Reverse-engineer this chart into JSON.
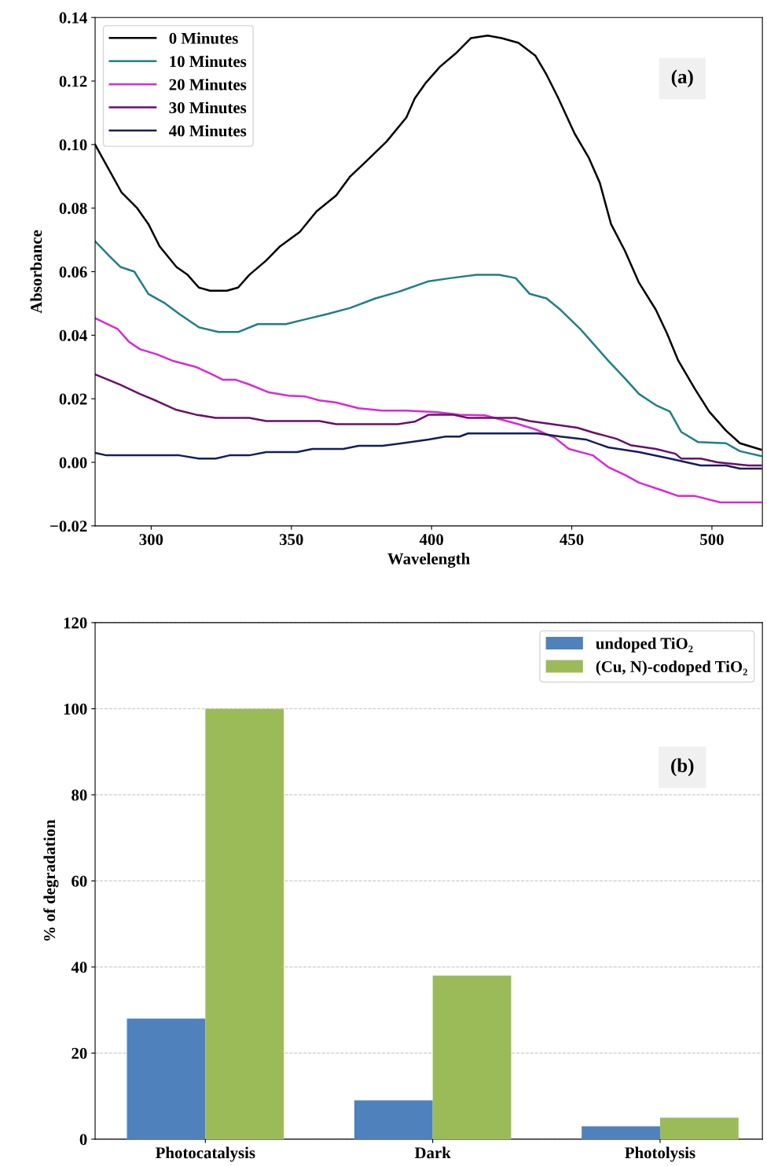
{
  "chart_data": [
    {
      "type": "line",
      "xlabel": "Wavelength",
      "ylabel": "Absorbance",
      "xlim": [
        280,
        518
      ],
      "ylim": [
        -0.02,
        0.14
      ],
      "xticks": [
        300,
        350,
        400,
        450,
        500
      ],
      "yticks": [
        {
          "value": -0.02,
          "label": "−0.02"
        },
        {
          "value": 0.0,
          "label": "0.00"
        },
        {
          "value": 0.02,
          "label": "0.02"
        },
        {
          "value": 0.04,
          "label": "0.04"
        },
        {
          "value": 0.06,
          "label": "0.06"
        },
        {
          "value": 0.08,
          "label": "0.08"
        },
        {
          "value": 0.1,
          "label": "0.10"
        },
        {
          "value": 0.12,
          "label": "0.12"
        },
        {
          "value": 0.14,
          "label": "0.14"
        }
      ],
      "legend": "top left",
      "grid": false,
      "annotations": [
        "(a)"
      ],
      "series": [
        {
          "name": "0 Minutes",
          "color": "#000000",
          "x": [
            280,
            289.4,
            295,
            299,
            303,
            309,
            313,
            317,
            321,
            327,
            331,
            335,
            341,
            346,
            353,
            359,
            366,
            371,
            377,
            384,
            391,
            394,
            398,
            403,
            409,
            414,
            420,
            425,
            431,
            437,
            441,
            445,
            451,
            456,
            460,
            464,
            469,
            474,
            480,
            484,
            488,
            494,
            499,
            505,
            510,
            517.5
          ],
          "values": [
            0.1,
            0.085,
            0.08,
            0.075,
            0.068,
            0.0615,
            0.059,
            0.055,
            0.054,
            0.054,
            0.055,
            0.059,
            0.0635,
            0.068,
            0.0725,
            0.079,
            0.084,
            0.09,
            0.095,
            0.101,
            0.1085,
            0.1145,
            0.1195,
            0.1245,
            0.129,
            0.1335,
            0.1343,
            0.1335,
            0.132,
            0.128,
            0.122,
            0.115,
            0.1035,
            0.096,
            0.088,
            0.075,
            0.0665,
            0.0565,
            0.048,
            0.0405,
            0.032,
            0.023,
            0.016,
            0.01,
            0.006,
            0.004
          ]
        },
        {
          "name": "10 Minutes",
          "color": "#1f7f85",
          "x": [
            280,
            285,
            289,
            294,
            299,
            305,
            310,
            317,
            324,
            331,
            338,
            348,
            355,
            363,
            371,
            380,
            388,
            399,
            407,
            416,
            424,
            430,
            435,
            441,
            446,
            453,
            457,
            463,
            469,
            474,
            480,
            485,
            489,
            495,
            505,
            510,
            517.5
          ],
          "values": [
            0.0696,
            0.065,
            0.0615,
            0.06,
            0.053,
            0.05,
            0.0467,
            0.0425,
            0.041,
            0.041,
            0.0435,
            0.0435,
            0.045,
            0.0467,
            0.0486,
            0.0516,
            0.0536,
            0.057,
            0.058,
            0.059,
            0.059,
            0.058,
            0.053,
            0.0516,
            0.048,
            0.042,
            0.038,
            0.032,
            0.0264,
            0.0215,
            0.018,
            0.016,
            0.0096,
            0.0064,
            0.006,
            0.0035,
            0.002
          ]
        },
        {
          "name": "20 Minutes",
          "color": "#d62ad6",
          "x": [
            280,
            288,
            292,
            296,
            302,
            307.5,
            316,
            321,
            325.5,
            330,
            335,
            342,
            349,
            355,
            360,
            366,
            374,
            382.5,
            391,
            402,
            410,
            419,
            425.5,
            431,
            437,
            444,
            449,
            457.5,
            463,
            469,
            474,
            482.5,
            488,
            494,
            503,
            517.5
          ],
          "values": [
            0.0454,
            0.042,
            0.038,
            0.0356,
            0.034,
            0.032,
            0.03,
            0.028,
            0.026,
            0.026,
            0.0245,
            0.022,
            0.021,
            0.0207,
            0.0195,
            0.0188,
            0.017,
            0.0163,
            0.0163,
            0.0158,
            0.015,
            0.0148,
            0.0133,
            0.012,
            0.0104,
            0.0077,
            0.0042,
            0.0022,
            -0.0015,
            -0.004,
            -0.0064,
            -0.0089,
            -0.0106,
            -0.0106,
            -0.0126,
            -0.0126
          ]
        },
        {
          "name": "30 Minutes",
          "color": "#6a0f6a",
          "x": [
            280,
            289,
            296,
            302,
            309,
            316,
            323,
            335,
            341,
            360,
            366,
            388,
            394,
            399,
            407.5,
            413,
            430,
            435,
            444,
            452,
            457.5,
            466,
            471,
            480,
            487,
            489,
            496,
            502,
            513,
            517.5
          ],
          "values": [
            0.0277,
            0.0244,
            0.0215,
            0.0193,
            0.0165,
            0.015,
            0.014,
            0.014,
            0.013,
            0.013,
            0.012,
            0.012,
            0.0128,
            0.015,
            0.015,
            0.014,
            0.014,
            0.013,
            0.0119,
            0.0109,
            0.0094,
            0.0074,
            0.0054,
            0.0042,
            0.0027,
            0.0012,
            0.0012,
            0.0,
            -0.001,
            -0.001
          ]
        },
        {
          "name": "40 Minutes",
          "color": "#141e5a",
          "x": [
            280,
            284,
            310,
            317,
            323,
            328,
            335,
            341,
            352,
            357.5,
            368.5,
            374,
            382.5,
            391,
            399,
            405,
            410,
            413,
            438,
            446,
            455,
            463,
            474,
            485,
            496,
            505,
            510,
            517.5
          ],
          "values": [
            0.003,
            0.0022,
            0.0022,
            0.0012,
            0.0012,
            0.0022,
            0.0022,
            0.0032,
            0.0032,
            0.0042,
            0.0042,
            0.0052,
            0.0052,
            0.0062,
            0.0072,
            0.0081,
            0.0081,
            0.0091,
            0.0091,
            0.0081,
            0.0072,
            0.0047,
            0.0032,
            0.0012,
            -0.001,
            -0.001,
            -0.002,
            -0.002
          ]
        }
      ]
    },
    {
      "type": "bar",
      "ylabel": "% of degradation",
      "categories": [
        "Photocatalysis",
        "Dark",
        "Photolysis"
      ],
      "ylim": [
        0,
        120
      ],
      "yticks": [
        0,
        20,
        40,
        60,
        80,
        100,
        120
      ],
      "legend": "top right",
      "grid": "y",
      "annotations": [
        "(b)"
      ],
      "series": [
        {
          "name": "undoped TiO₂",
          "color": "#4f81bd",
          "values": [
            28,
            9,
            3
          ]
        },
        {
          "name": "(Cu, N)-codoped TiO₂",
          "color": "#9bbb59",
          "values": [
            100,
            38,
            5
          ]
        }
      ]
    }
  ]
}
